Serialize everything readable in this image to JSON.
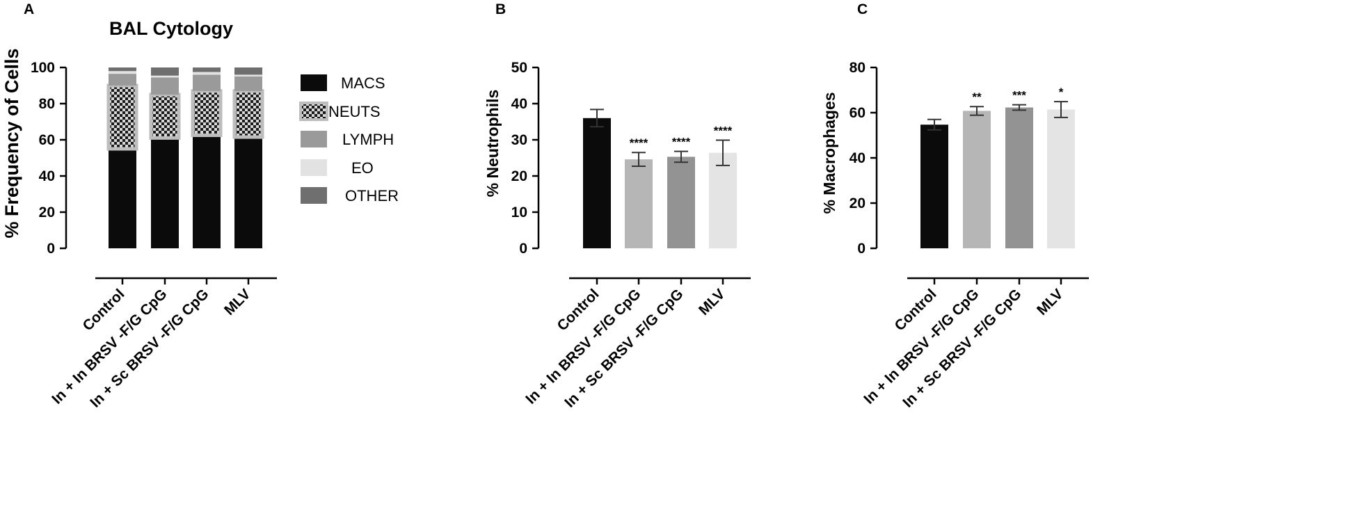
{
  "panels": [
    {
      "letter": "A"
    },
    {
      "letter": "B"
    },
    {
      "letter": "C"
    }
  ],
  "chart_data": [
    {
      "type": "bar",
      "stacked": true,
      "title": "BAL Cytology",
      "ylabel": "%  Frequency of Cells",
      "xlabel": "",
      "ylim": [
        0,
        100
      ],
      "yticks": [
        0,
        20,
        40,
        60,
        80,
        100
      ],
      "categories": [
        "Control",
        "In + In BRSV -F/G CpG",
        "In + Sc BRSV -F/G CpG",
        "MLV"
      ],
      "series": [
        {
          "name": "MACS",
          "color": "#0b0b0b",
          "values": [
            55,
            61,
            62.5,
            61.5
          ]
        },
        {
          "name": "NEUTS",
          "color": "#c8c8c8",
          "pattern": "checker",
          "values": [
            35,
            24,
            24.5,
            25.5
          ]
        },
        {
          "name": "LYMPH",
          "color": "#9a9a9a",
          "values": [
            6.5,
            9.5,
            9,
            8
          ]
        },
        {
          "name": "EO",
          "color": "#e2e2e2",
          "values": [
            1.5,
            1,
            1.5,
            1
          ]
        },
        {
          "name": "OTHER",
          "color": "#6f6f6f",
          "values": [
            2,
            4.5,
            2.5,
            4
          ]
        }
      ],
      "legend_position": "right",
      "grid": false
    },
    {
      "type": "bar",
      "title": "",
      "ylabel": "%  Neutrophils",
      "xlabel": "",
      "ylim": [
        0,
        50
      ],
      "yticks": [
        0,
        10,
        20,
        30,
        40,
        50
      ],
      "categories": [
        "Control",
        "In + In BRSV -F/G CpG",
        "In + Sc BRSV -F/G CpG",
        "MLV"
      ],
      "values": [
        36,
        24.6,
        25.3,
        26.4
      ],
      "error": [
        2.4,
        1.9,
        1.5,
        3.5
      ],
      "annotations": [
        "",
        "****",
        "****",
        "****"
      ],
      "colors": [
        "#0b0b0b",
        "#b6b6b6",
        "#939393",
        "#e4e4e4"
      ],
      "grid": false
    },
    {
      "type": "bar",
      "title": "",
      "ylabel": "% Macrophages",
      "xlabel": "",
      "ylim": [
        0,
        80
      ],
      "yticks": [
        0,
        20,
        40,
        60,
        80
      ],
      "categories": [
        "Control",
        "In + In BRSV -F/G CpG",
        "In + Sc BRSV -F/G CpG",
        "MLV"
      ],
      "values": [
        54.7,
        60.8,
        62.3,
        61.4
      ],
      "error": [
        2.3,
        1.9,
        1.2,
        3.5
      ],
      "annotations": [
        "",
        "**",
        "***",
        "*"
      ],
      "colors": [
        "#0b0b0b",
        "#b6b6b6",
        "#939393",
        "#e4e4e4"
      ],
      "grid": false
    }
  ]
}
